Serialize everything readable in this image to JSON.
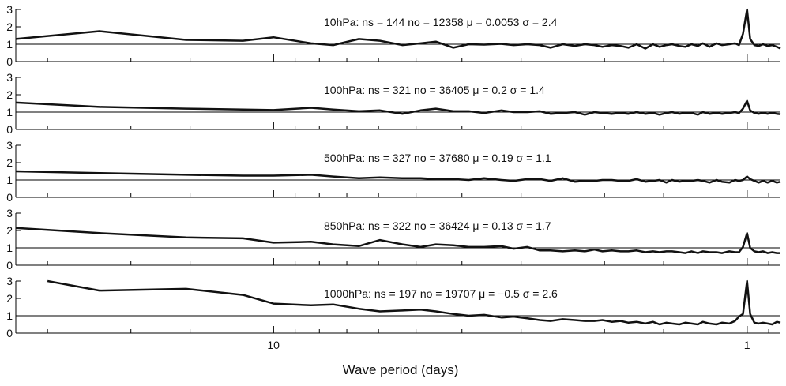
{
  "chart_data": {
    "type": "line",
    "xlabel": "Wave period (days)",
    "x_scale": "log",
    "x_reversed": true,
    "xlim": [
      35,
      0.85
    ],
    "x_tick_labels": [
      {
        "value": 10,
        "label": "10"
      },
      {
        "value": 1,
        "label": "1"
      }
    ],
    "x_minor_ticks": [
      30,
      20,
      15,
      9,
      8,
      7,
      6,
      5,
      4,
      3,
      2,
      1.5,
      0.9
    ],
    "ylim": [
      0,
      3
    ],
    "y_ticks": [
      "0",
      "1",
      "2",
      "3"
    ],
    "reference_line_y": 1,
    "panels": [
      {
        "annotation": "10hPa:  ns = 144   no = 12358  μ = 0.0053  σ = 2.4",
        "x": [
          35,
          23.3,
          15.3,
          11.6,
          10,
          8.33,
          7.48,
          6.6,
          5.96,
          5.34,
          4.89,
          4.54,
          4.17,
          3.87,
          3.59,
          3.3,
          3.11,
          2.91,
          2.74,
          2.6,
          2.45,
          2.31,
          2.2,
          2.1,
          2.02,
          1.93,
          1.85,
          1.78,
          1.71,
          1.64,
          1.58,
          1.53,
          1.48,
          1.44,
          1.39,
          1.35,
          1.31,
          1.27,
          1.24,
          1.2,
          1.16,
          1.13,
          1.09,
          1.06,
          1.04,
          1.02,
          1.0,
          0.985,
          0.965,
          0.945,
          0.925,
          0.905,
          0.885,
          0.865,
          0.85
        ],
        "y": [
          1.3,
          1.75,
          1.25,
          1.2,
          1.4,
          1.05,
          0.95,
          1.3,
          1.2,
          0.95,
          1.05,
          1.15,
          0.8,
          1.0,
          0.98,
          1.02,
          0.95,
          1.0,
          0.95,
          0.8,
          1.0,
          0.9,
          1.0,
          0.95,
          0.85,
          0.95,
          0.9,
          0.8,
          1.0,
          0.75,
          1.0,
          0.85,
          0.95,
          1.0,
          0.9,
          0.85,
          1.0,
          0.9,
          1.05,
          0.85,
          1.05,
          0.95,
          1.0,
          1.05,
          0.95,
          1.6,
          3.0,
          1.3,
          0.95,
          0.9,
          1.0,
          0.9,
          0.95,
          0.85,
          0.75
        ]
      },
      {
        "annotation": "100hPa:  ns = 321   no = 36405  μ = 0.2  σ = 1.4",
        "x": [
          35,
          23.3,
          15.3,
          11.6,
          10,
          8.33,
          7.48,
          6.6,
          5.96,
          5.34,
          4.89,
          4.54,
          4.17,
          3.87,
          3.59,
          3.3,
          3.11,
          2.91,
          2.74,
          2.6,
          2.45,
          2.31,
          2.2,
          2.1,
          2.02,
          1.93,
          1.85,
          1.78,
          1.71,
          1.64,
          1.58,
          1.53,
          1.48,
          1.44,
          1.39,
          1.35,
          1.31,
          1.27,
          1.24,
          1.2,
          1.16,
          1.13,
          1.09,
          1.06,
          1.04,
          1.02,
          1.0,
          0.985,
          0.965,
          0.945,
          0.925,
          0.905,
          0.885,
          0.865,
          0.85
        ],
        "y": [
          1.55,
          1.3,
          1.2,
          1.15,
          1.12,
          1.25,
          1.15,
          1.05,
          1.1,
          0.9,
          1.1,
          1.2,
          1.05,
          1.05,
          0.95,
          1.1,
          1.0,
          1.0,
          1.05,
          0.9,
          0.95,
          1.0,
          0.85,
          1.0,
          0.95,
          0.9,
          0.95,
          0.9,
          1.0,
          0.9,
          0.95,
          0.85,
          0.95,
          1.0,
          0.9,
          0.95,
          0.95,
          0.85,
          1.0,
          0.9,
          0.95,
          0.9,
          0.95,
          1.0,
          0.95,
          1.2,
          1.65,
          1.1,
          0.95,
          0.9,
          0.95,
          0.9,
          0.95,
          0.9,
          0.88
        ]
      },
      {
        "annotation": "500hPa:  ns = 327   no = 37680  μ = 0.19  σ = 1.1",
        "x": [
          35,
          23.3,
          15.3,
          11.6,
          10,
          8.33,
          7.48,
          6.6,
          5.96,
          5.34,
          4.89,
          4.54,
          4.17,
          3.87,
          3.59,
          3.3,
          3.11,
          2.91,
          2.74,
          2.6,
          2.45,
          2.31,
          2.2,
          2.1,
          2.02,
          1.93,
          1.85,
          1.78,
          1.71,
          1.64,
          1.58,
          1.53,
          1.48,
          1.44,
          1.39,
          1.35,
          1.31,
          1.27,
          1.24,
          1.2,
          1.16,
          1.13,
          1.09,
          1.06,
          1.04,
          1.02,
          1.0,
          0.985,
          0.965,
          0.945,
          0.925,
          0.905,
          0.885,
          0.865,
          0.85
        ],
        "y": [
          1.5,
          1.4,
          1.3,
          1.25,
          1.25,
          1.3,
          1.2,
          1.1,
          1.15,
          1.1,
          1.1,
          1.05,
          1.05,
          1.0,
          1.1,
          1.0,
          0.95,
          1.05,
          1.05,
          0.95,
          1.1,
          0.9,
          0.95,
          0.95,
          1.0,
          1.0,
          0.95,
          0.95,
          1.05,
          0.9,
          0.95,
          1.0,
          0.85,
          1.0,
          0.9,
          0.95,
          0.95,
          1.0,
          0.95,
          0.85,
          1.0,
          0.9,
          0.85,
          1.0,
          0.95,
          1.0,
          1.2,
          1.05,
          0.95,
          0.85,
          0.95,
          0.85,
          0.95,
          0.85,
          0.9
        ]
      },
      {
        "annotation": "850hPa:  ns = 322   no = 36424  μ = 0.13  σ = 1.7",
        "x": [
          35,
          23.3,
          15.3,
          11.6,
          10,
          8.33,
          7.48,
          6.6,
          5.96,
          5.34,
          4.89,
          4.54,
          4.17,
          3.87,
          3.59,
          3.3,
          3.11,
          2.91,
          2.74,
          2.6,
          2.45,
          2.31,
          2.2,
          2.1,
          2.02,
          1.93,
          1.85,
          1.78,
          1.71,
          1.64,
          1.58,
          1.53,
          1.48,
          1.44,
          1.39,
          1.35,
          1.31,
          1.27,
          1.24,
          1.2,
          1.16,
          1.13,
          1.09,
          1.06,
          1.04,
          1.02,
          1.0,
          0.985,
          0.965,
          0.945,
          0.925,
          0.905,
          0.885,
          0.865,
          0.85
        ],
        "y": [
          2.15,
          1.85,
          1.6,
          1.55,
          1.3,
          1.35,
          1.2,
          1.1,
          1.45,
          1.2,
          1.05,
          1.2,
          1.15,
          1.05,
          1.05,
          1.1,
          0.95,
          1.05,
          0.85,
          0.85,
          0.8,
          0.85,
          0.8,
          0.9,
          0.8,
          0.85,
          0.8,
          0.8,
          0.85,
          0.75,
          0.8,
          0.75,
          0.8,
          0.8,
          0.75,
          0.7,
          0.8,
          0.7,
          0.8,
          0.75,
          0.75,
          0.7,
          0.8,
          0.75,
          0.75,
          1.05,
          1.85,
          1.0,
          0.8,
          0.75,
          0.8,
          0.7,
          0.75,
          0.7,
          0.7
        ]
      },
      {
        "annotation": "1000hPa:  ns = 197   no = 19707  μ = −0.5  σ = 2.6",
        "x": [
          30,
          23.3,
          15.3,
          11.6,
          10,
          8.33,
          7.48,
          6.6,
          5.96,
          5.34,
          4.89,
          4.54,
          4.17,
          3.87,
          3.59,
          3.3,
          3.11,
          2.91,
          2.74,
          2.6,
          2.45,
          2.31,
          2.2,
          2.1,
          2.02,
          1.93,
          1.85,
          1.78,
          1.71,
          1.64,
          1.58,
          1.53,
          1.48,
          1.44,
          1.39,
          1.35,
          1.31,
          1.27,
          1.24,
          1.2,
          1.16,
          1.13,
          1.09,
          1.06,
          1.04,
          1.02,
          1.0,
          0.985,
          0.965,
          0.945,
          0.925,
          0.905,
          0.885,
          0.865,
          0.85
        ],
        "y": [
          3.0,
          2.45,
          2.55,
          2.2,
          1.7,
          1.6,
          1.65,
          1.4,
          1.25,
          1.3,
          1.35,
          1.25,
          1.1,
          1.0,
          1.05,
          0.9,
          0.95,
          0.85,
          0.75,
          0.7,
          0.8,
          0.75,
          0.7,
          0.7,
          0.75,
          0.65,
          0.7,
          0.6,
          0.65,
          0.55,
          0.65,
          0.5,
          0.6,
          0.55,
          0.5,
          0.6,
          0.55,
          0.5,
          0.65,
          0.55,
          0.5,
          0.6,
          0.55,
          0.7,
          0.95,
          1.1,
          3.0,
          1.1,
          0.6,
          0.55,
          0.6,
          0.55,
          0.5,
          0.65,
          0.6
        ]
      }
    ]
  }
}
